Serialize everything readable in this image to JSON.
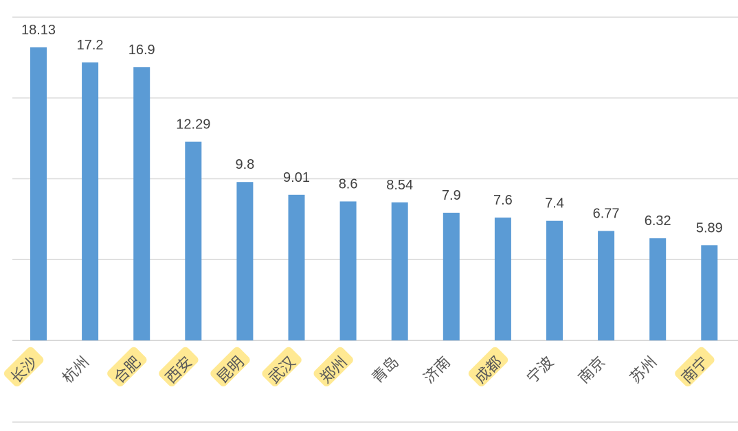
{
  "chart_data": {
    "type": "bar",
    "title": "",
    "xlabel": "",
    "ylabel": "",
    "ylim": [
      0,
      20
    ],
    "grid": true,
    "legend": "none",
    "bar_color": "#5b9bd5",
    "highlight_color": "#ffe580",
    "categories": [
      "长沙",
      "杭州",
      "合肥",
      "西安",
      "昆明",
      "武汉",
      "郑州",
      "青岛",
      "济南",
      "成都",
      "宁波",
      "南京",
      "苏州",
      "南宁"
    ],
    "values": [
      18.13,
      17.2,
      16.9,
      12.29,
      9.8,
      9.01,
      8.6,
      8.54,
      7.9,
      7.6,
      7.4,
      6.77,
      6.32,
      5.89
    ],
    "value_labels": [
      "18.13",
      "17.2",
      "16.9",
      "12.29",
      "9.8",
      "9.01",
      "8.6",
      "8.54",
      "7.9",
      "7.6",
      "7.4",
      "6.77",
      "6.32",
      "5.89"
    ],
    "highlighted_categories": [
      "长沙",
      "合肥",
      "西安",
      "昆明",
      "武汉",
      "郑州",
      "成都",
      "南宁"
    ]
  }
}
